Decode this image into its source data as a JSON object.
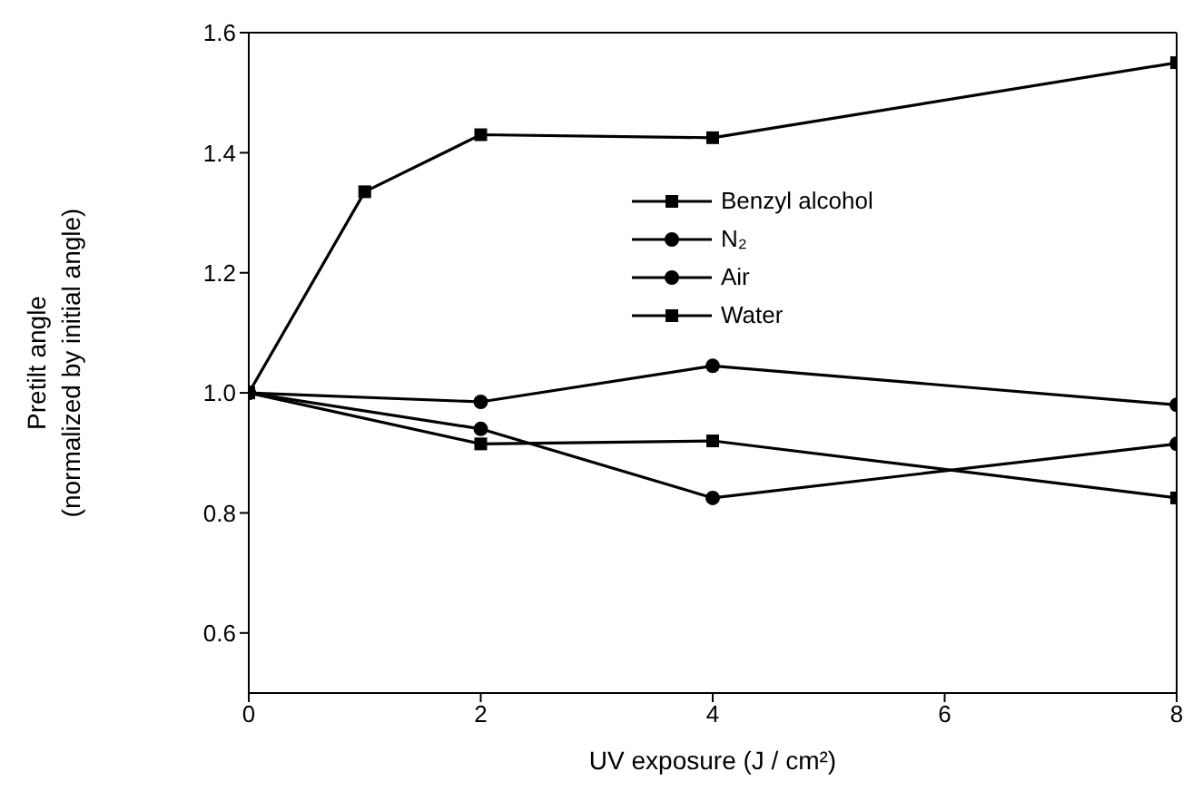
{
  "chart_data": {
    "type": "line",
    "xlabel": "UV exposure (J / cm²)",
    "ylabel": "Pretilt angle\n(normalized by initial angle)",
    "x": [
      0,
      1,
      2,
      4,
      8
    ],
    "xlim": [
      0,
      8
    ],
    "xticks": [
      0,
      2,
      4,
      6,
      8
    ],
    "ylim": [
      0.5,
      1.6
    ],
    "yticks": [
      0.6,
      0.8,
      {
        "value": 1,
        "label": "1.0"
      },
      1.2,
      1.4,
      1.6
    ],
    "legend": "right",
    "series": [
      {
        "name": "Benzyl alcohol",
        "color": "#000000",
        "marker": "square",
        "values": [
          1.0,
          1.335,
          1.43,
          1.425,
          1.55
        ]
      },
      {
        "name": "N₂",
        "color": "#000000",
        "marker": "circle",
        "x": [
          0,
          2,
          4,
          8
        ],
        "values": [
          1.0,
          0.985,
          1.045,
          0.98
        ]
      },
      {
        "name": "Air",
        "color": "#000000",
        "marker": "circle",
        "x": [
          0,
          2,
          4,
          8
        ],
        "values": [
          1.0,
          0.94,
          0.825,
          0.915
        ]
      },
      {
        "name": "Water",
        "color": "#000000",
        "marker": "square",
        "x": [
          0,
          2,
          4,
          8
        ],
        "values": [
          1.0,
          0.915,
          0.92,
          0.825
        ]
      }
    ]
  }
}
